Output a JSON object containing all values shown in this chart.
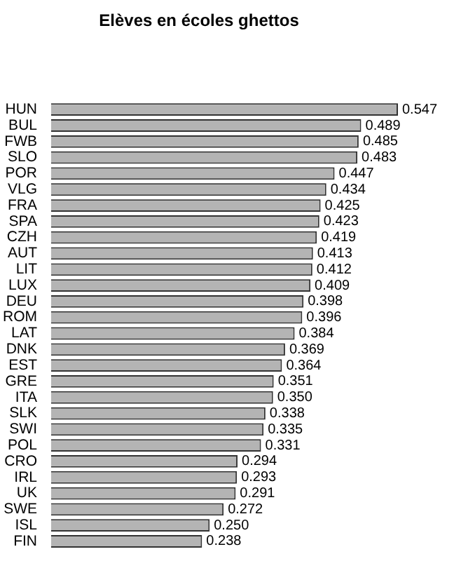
{
  "chart_data": {
    "type": "bar",
    "orientation": "horizontal",
    "title": "Elèves en écoles ghettos",
    "categories": [
      "HUN",
      "BUL",
      "FWB",
      "SLO",
      "POR",
      "VLG",
      "FRA",
      "SPA",
      "CZH",
      "AUT",
      "LIT",
      "LUX",
      "DEU",
      "ROM",
      "LAT",
      "DNK",
      "EST",
      "GRE",
      "ITA",
      "SLK",
      "SWI",
      "POL",
      "CRO",
      "IRL",
      "UK",
      "SWE",
      "ISL",
      "FIN"
    ],
    "values": [
      0.547,
      0.489,
      0.485,
      0.483,
      0.447,
      0.434,
      0.425,
      0.423,
      0.419,
      0.413,
      0.412,
      0.409,
      0.398,
      0.396,
      0.384,
      0.369,
      0.364,
      0.351,
      0.35,
      0.338,
      0.335,
      0.331,
      0.294,
      0.293,
      0.291,
      0.272,
      0.25,
      0.238
    ],
    "value_labels": [
      "0.547",
      "0.489",
      "0.485",
      "0.483",
      "0.447",
      "0.434",
      "0.425",
      "0.423",
      "0.419",
      "0.413",
      "0.412",
      "0.409",
      "0.398",
      "0.396",
      "0.384",
      "0.369",
      "0.364",
      "0.351",
      "0.350",
      "0.338",
      "0.335",
      "0.331",
      "0.294",
      "0.293",
      "0.291",
      "0.272",
      "0.250",
      "0.238"
    ],
    "color": "#b4b4b4",
    "legend": false
  }
}
